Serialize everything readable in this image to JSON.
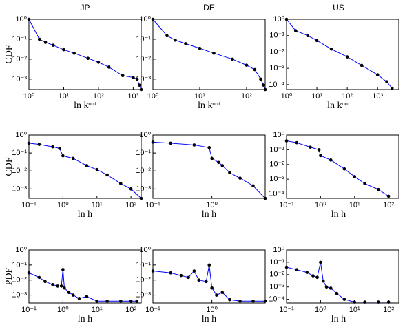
{
  "chart_data": [
    {
      "type": "line",
      "title": "JP",
      "ylabel": "CDF",
      "xlabel": "ln kᵒᵘᵗ",
      "xscale": "log",
      "yscale": "log",
      "color": "#0000ff",
      "marker_color": "#000000",
      "x": [
        1,
        2,
        3,
        5,
        10,
        20,
        50,
        100,
        200,
        500,
        1000,
        1300,
        1500,
        1700
      ],
      "values": [
        1,
        0.1,
        0.07,
        0.05,
        0.03,
        0.02,
        0.011,
        0.007,
        0.004,
        0.0015,
        0.0012,
        0.001,
        0.0005,
        0.0003
      ],
      "xlim": [
        1,
        1700
      ],
      "ylim": [
        0.0003,
        1
      ],
      "xticks": [
        {
          "value": 1,
          "label": "10⁰"
        },
        {
          "value": 10,
          "label": "10¹"
        },
        {
          "value": 100,
          "label": "10²"
        },
        {
          "value": 1000,
          "label": "10³"
        }
      ],
      "yticks": [
        {
          "value": 0.001,
          "label": "10⁻³"
        },
        {
          "value": 0.01,
          "label": "10⁻²"
        },
        {
          "value": 0.1,
          "label": "10⁻¹"
        },
        {
          "value": 1,
          "label": "10⁰"
        }
      ]
    },
    {
      "type": "line",
      "title": "DE",
      "xlabel": "ln kᵒᵘᵗ",
      "xscale": "log",
      "yscale": "log",
      "color": "#0000ff",
      "marker_color": "#000000",
      "x": [
        1,
        2,
        3,
        5,
        10,
        20,
        50,
        100,
        150,
        200,
        230,
        250
      ],
      "values": [
        1,
        0.15,
        0.09,
        0.06,
        0.035,
        0.02,
        0.01,
        0.005,
        0.003,
        0.001,
        0.0005,
        0.0003
      ],
      "xlim": [
        1,
        250
      ],
      "ylim": [
        0.0003,
        1
      ],
      "xticks": [
        {
          "value": 1,
          "label": "10⁰"
        },
        {
          "value": 10,
          "label": "10¹"
        },
        {
          "value": 100,
          "label": "10²"
        }
      ],
      "yticks": [
        {
          "value": 0.001,
          "label": "10⁻³"
        },
        {
          "value": 0.01,
          "label": "10⁻²"
        },
        {
          "value": 0.1,
          "label": "10⁻¹"
        },
        {
          "value": 1,
          "label": "10⁰"
        }
      ]
    },
    {
      "type": "line",
      "title": "US",
      "xlabel": "ln kᵒᵘᵗ",
      "xscale": "log",
      "yscale": "log",
      "color": "#0000ff",
      "marker_color": "#000000",
      "x": [
        1,
        2,
        5,
        10,
        30,
        100,
        300,
        1000,
        2000,
        3000
      ],
      "values": [
        1,
        0.2,
        0.1,
        0.05,
        0.015,
        0.005,
        0.0015,
        0.0004,
        0.00015,
        6e-05
      ],
      "xlim": [
        1,
        5000
      ],
      "ylim": [
        5e-05,
        1
      ],
      "xticks": [
        {
          "value": 1,
          "label": "10⁰"
        },
        {
          "value": 10,
          "label": "10¹"
        },
        {
          "value": 100,
          "label": "10²"
        },
        {
          "value": 1000,
          "label": "10³"
        }
      ],
      "yticks": [
        {
          "value": 0.0001,
          "label": "10⁻⁴"
        },
        {
          "value": 0.001,
          "label": "10⁻³"
        },
        {
          "value": 0.01,
          "label": "10⁻²"
        },
        {
          "value": 0.1,
          "label": "10⁻¹"
        },
        {
          "value": 1,
          "label": "10⁰"
        }
      ]
    },
    {
      "type": "line",
      "ylabel": "CDF",
      "xlabel": "ln h",
      "xscale": "log",
      "yscale": "log",
      "color": "#0000ff",
      "marker_color": "#000000",
      "x": [
        0.1,
        0.2,
        0.5,
        0.8,
        1,
        2,
        5,
        10,
        20,
        50,
        100,
        200
      ],
      "values": [
        0.35,
        0.3,
        0.22,
        0.18,
        0.07,
        0.05,
        0.02,
        0.012,
        0.006,
        0.002,
        0.001,
        0.0003
      ],
      "xlim": [
        0.1,
        200
      ],
      "ylim": [
        0.0003,
        1
      ],
      "xticks": [
        {
          "value": 0.1,
          "label": "10⁻¹"
        },
        {
          "value": 1,
          "label": "10⁰"
        },
        {
          "value": 10,
          "label": "10¹"
        },
        {
          "value": 100,
          "label": "10²"
        }
      ],
      "yticks": [
        {
          "value": 0.001,
          "label": "10⁻³"
        },
        {
          "value": 0.01,
          "label": "10⁻²"
        },
        {
          "value": 0.1,
          "label": "10⁻¹"
        },
        {
          "value": 1,
          "label": "10⁰"
        }
      ]
    },
    {
      "type": "line",
      "xlabel": "ln h",
      "xscale": "log",
      "yscale": "log",
      "color": "#0000ff",
      "marker_color": "#000000",
      "x": [
        0.1,
        0.2,
        0.5,
        0.9,
        1,
        1.3,
        1.5,
        2,
        3,
        5,
        8
      ],
      "values": [
        0.4,
        0.35,
        0.28,
        0.2,
        0.05,
        0.03,
        0.02,
        0.008,
        0.004,
        0.0015,
        0.0003
      ],
      "xlim": [
        0.1,
        8
      ],
      "ylim": [
        0.0003,
        1
      ],
      "xticks": [
        {
          "value": 0.1,
          "label": "10⁻¹"
        },
        {
          "value": 1,
          "label": "10⁰"
        }
      ],
      "yticks": [
        {
          "value": 0.001,
          "label": "10⁻³"
        },
        {
          "value": 0.01,
          "label": "10⁻²"
        },
        {
          "value": 0.1,
          "label": "10⁻¹"
        },
        {
          "value": 1,
          "label": "10⁰"
        }
      ]
    },
    {
      "type": "line",
      "xlabel": "ln h",
      "xscale": "log",
      "yscale": "log",
      "color": "#0000ff",
      "marker_color": "#000000",
      "x": [
        0.1,
        0.2,
        0.5,
        0.9,
        1,
        2,
        5,
        10,
        20,
        50,
        100
      ],
      "values": [
        0.4,
        0.3,
        0.15,
        0.1,
        0.04,
        0.02,
        0.005,
        0.0015,
        0.0005,
        0.0002,
        7e-05
      ],
      "xlim": [
        0.1,
        200
      ],
      "ylim": [
        5e-05,
        1
      ],
      "xticks": [
        {
          "value": 0.1,
          "label": "10⁻¹"
        },
        {
          "value": 1,
          "label": "10⁰"
        },
        {
          "value": 10,
          "label": "10¹"
        },
        {
          "value": 100,
          "label": "10²"
        }
      ],
      "yticks": [
        {
          "value": 0.0001,
          "label": "10⁻⁴"
        },
        {
          "value": 0.001,
          "label": "10⁻³"
        },
        {
          "value": 0.01,
          "label": "10⁻²"
        },
        {
          "value": 0.1,
          "label": "10⁻¹"
        },
        {
          "value": 1,
          "label": "10⁰"
        }
      ]
    },
    {
      "type": "line",
      "ylabel": "PDF",
      "xlabel": "ln h",
      "xscale": "log",
      "yscale": "log",
      "color": "#0000ff",
      "marker_color": "#000000",
      "x": [
        0.1,
        0.2,
        0.3,
        0.5,
        0.7,
        0.9,
        1,
        1.1,
        1.5,
        2,
        3,
        5,
        10,
        20,
        50,
        100,
        150
      ],
      "values": [
        0.03,
        0.015,
        0.008,
        0.005,
        0.004,
        0.004,
        0.05,
        0.003,
        0.0015,
        0.001,
        0.0006,
        0.0008,
        0.0004,
        0.0004,
        0.0004,
        0.0004,
        0.0004
      ],
      "xlim": [
        0.1,
        200
      ],
      "ylim": [
        0.0003,
        1
      ],
      "xticks": [
        {
          "value": 0.1,
          "label": "10⁻¹"
        },
        {
          "value": 1,
          "label": "10⁰"
        },
        {
          "value": 10,
          "label": "10¹"
        },
        {
          "value": 100,
          "label": "10²"
        }
      ],
      "yticks": [
        {
          "value": 0.001,
          "label": "10⁻³"
        },
        {
          "value": 0.01,
          "label": "10⁻²"
        },
        {
          "value": 0.1,
          "label": "10⁻¹"
        },
        {
          "value": 1,
          "label": "10⁰"
        }
      ]
    },
    {
      "type": "line",
      "xlabel": "ln h",
      "xscale": "log",
      "yscale": "log",
      "color": "#0000ff",
      "marker_color": "#000000",
      "x": [
        0.1,
        0.2,
        0.3,
        0.4,
        0.5,
        0.6,
        0.8,
        0.9,
        1,
        1.2,
        1.5,
        2,
        3,
        5,
        8
      ],
      "values": [
        0.04,
        0.03,
        0.02,
        0.015,
        0.04,
        0.01,
        0.008,
        0.1,
        0.003,
        0.001,
        0.0015,
        0.0005,
        0.0004,
        0.0004,
        0.0004
      ],
      "xlim": [
        0.1,
        8
      ],
      "ylim": [
        0.0003,
        1
      ],
      "xticks": [
        {
          "value": 0.1,
          "label": "10⁻¹"
        },
        {
          "value": 1,
          "label": "10⁰"
        }
      ],
      "yticks": [
        {
          "value": 0.001,
          "label": "10⁻³"
        },
        {
          "value": 0.01,
          "label": "10⁻²"
        },
        {
          "value": 0.1,
          "label": "10⁻¹"
        },
        {
          "value": 1,
          "label": "10⁰"
        }
      ]
    },
    {
      "type": "line",
      "xlabel": "ln h",
      "xscale": "log",
      "yscale": "log",
      "color": "#0000ff",
      "marker_color": "#000000",
      "x": [
        0.1,
        0.2,
        0.4,
        0.6,
        0.8,
        1,
        1.2,
        1.5,
        2,
        3,
        5,
        10,
        20,
        50,
        100
      ],
      "values": [
        0.04,
        0.025,
        0.015,
        0.008,
        0.006,
        0.1,
        0.003,
        0.001,
        0.0008,
        0.0003,
        0.0001,
        6e-05,
        6e-05,
        6e-05,
        6e-05
      ],
      "xlim": [
        0.1,
        200
      ],
      "ylim": [
        5e-05,
        1
      ],
      "xticks": [
        {
          "value": 0.1,
          "label": "10⁻¹"
        },
        {
          "value": 1,
          "label": "10⁰"
        },
        {
          "value": 10,
          "label": "10¹"
        },
        {
          "value": 100,
          "label": "10²"
        }
      ],
      "yticks": [
        {
          "value": 0.0001,
          "label": "10⁻⁴"
        },
        {
          "value": 0.001,
          "label": "10⁻³"
        },
        {
          "value": 0.01,
          "label": "10⁻²"
        },
        {
          "value": 0.1,
          "label": "10⁻¹"
        },
        {
          "value": 1,
          "label": "10⁰"
        }
      ]
    }
  ]
}
